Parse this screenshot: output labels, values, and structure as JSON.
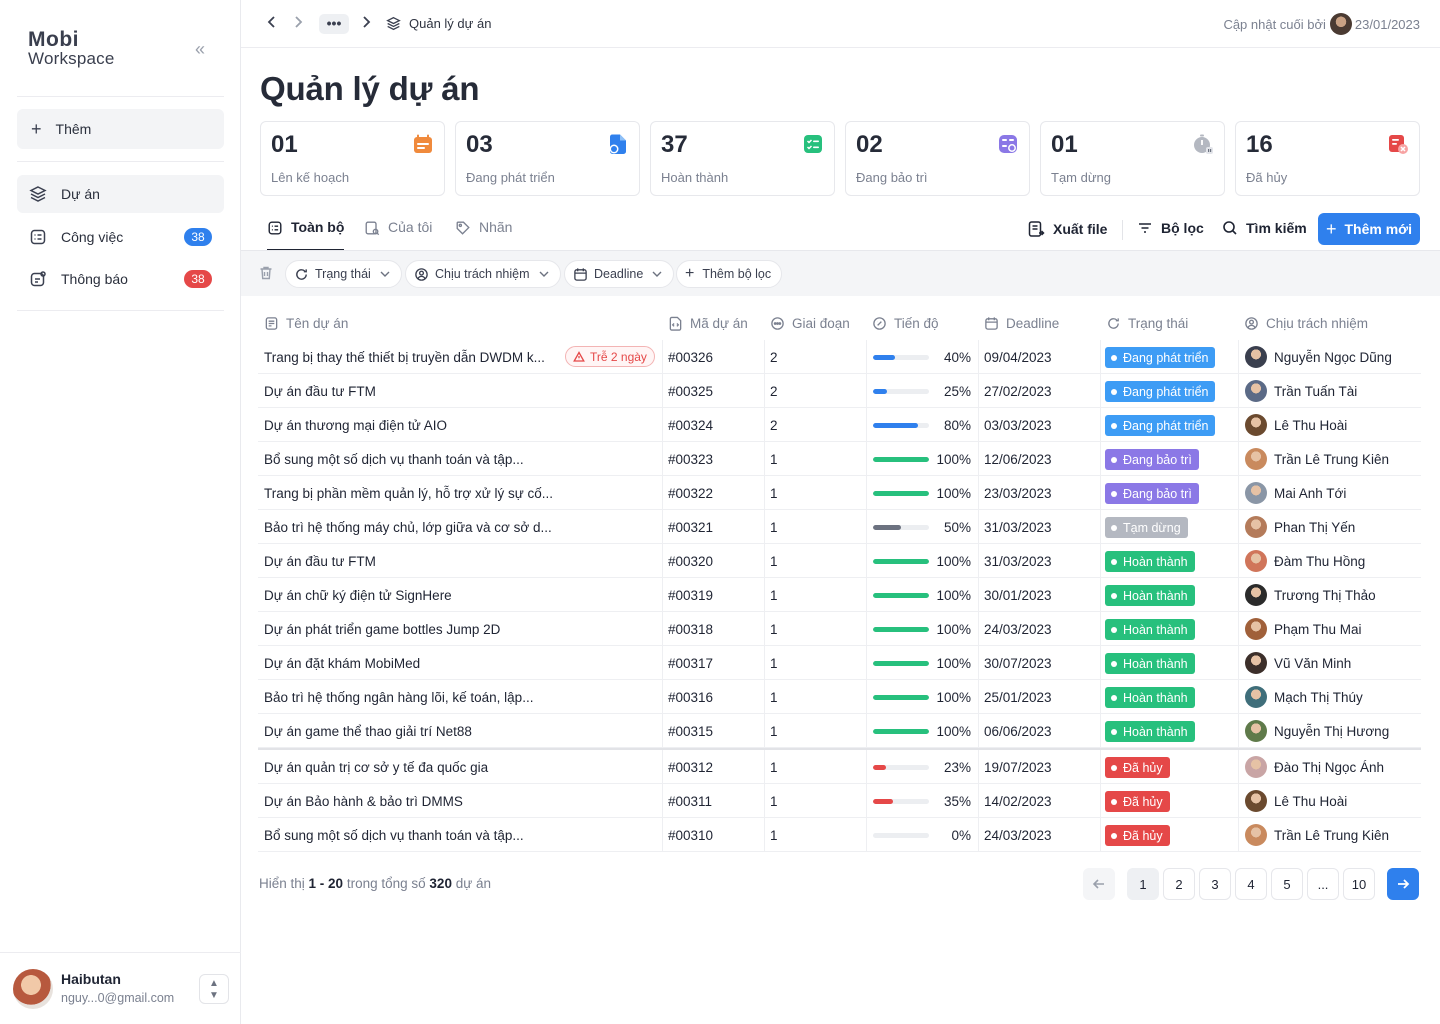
{
  "brand": {
    "logo_line1": "Mobi",
    "logo_line2": "Workspace"
  },
  "sidebar": {
    "add_label": "Thêm",
    "items": [
      {
        "label": "Dự án",
        "badge": ""
      },
      {
        "label": "Công việc",
        "badge": "38",
        "badge_color": "#2f80ed"
      },
      {
        "label": "Thông báo",
        "badge": "38",
        "badge_color": "#e54848"
      }
    ],
    "user": {
      "name": "Haibutan",
      "email": "nguy...0@gmail.com"
    }
  },
  "topbar": {
    "more_label": "•••",
    "breadcrumb": "Quản lý dự án",
    "updated_label": "Cập nhật cuối bởi",
    "updated_date": "23/01/2023"
  },
  "page": {
    "title": "Quản lý dự án"
  },
  "stats": [
    {
      "num": "01",
      "label": "Lên kế hoạch",
      "icon": "calendar-icon",
      "color": "#f08a3c"
    },
    {
      "num": "03",
      "label": "Đang phát triển",
      "icon": "file-code-icon",
      "color": "#2f80ed"
    },
    {
      "num": "37",
      "label": "Hoàn thành",
      "icon": "checklist-icon",
      "color": "#27c07d"
    },
    {
      "num": "02",
      "label": "Đang bảo trì",
      "icon": "maintenance-icon",
      "color": "#8b78e6"
    },
    {
      "num": "01",
      "label": "Tạm dừng",
      "icon": "pause-timer-icon",
      "color": "#9aa0ac"
    },
    {
      "num": "16",
      "label": "Đã hủy",
      "icon": "cancel-icon",
      "color": "#e54848"
    }
  ],
  "tabs": [
    {
      "label": "Toàn bộ",
      "active": true
    },
    {
      "label": "Của tôi",
      "active": false
    },
    {
      "label": "Nhãn",
      "active": false
    }
  ],
  "actions": {
    "export": "Xuất file",
    "filter": "Bộ lọc",
    "search": "Tìm kiếm",
    "add_new": "Thêm mới"
  },
  "filters": {
    "status": "Trạng thái",
    "owner": "Chịu trách nhiệm",
    "deadline": "Deadline",
    "add": "Thêm bộ lọc"
  },
  "table": {
    "headers": {
      "name": "Tên dự án",
      "code": "Mã dự án",
      "phase": "Giai đoạn",
      "progress": "Tiến độ",
      "deadline": "Deadline",
      "status": "Trạng thái",
      "owner": "Chịu trách nhiệm"
    },
    "late_label": "Trễ 2 ngày",
    "rows": [
      {
        "name": "Trang bị thay thế thiết bị truyền dẫn DWDM k...",
        "late": true,
        "code": "#00326",
        "phase": "2",
        "progress": 40,
        "progress_label": "40%",
        "deadline": "09/04/2023",
        "status": "Đang phát triển",
        "status_color": "#3d9cf5",
        "bar_color": "#2f80ed",
        "owner": "Nguyễn Ngọc Dũng",
        "avatar_color": "#3a3f4e"
      },
      {
        "name": "Dự án đầu tư FTM",
        "late": false,
        "code": "#00325",
        "phase": "2",
        "progress": 25,
        "progress_label": "25%",
        "deadline": "27/02/2023",
        "status": "Đang phát triển",
        "status_color": "#3d9cf5",
        "bar_color": "#2f80ed",
        "owner": "Trần Tuấn Tài",
        "avatar_color": "#5b6a86"
      },
      {
        "name": "Dự án thương mại điện tử AIO",
        "late": false,
        "code": "#00324",
        "phase": "2",
        "progress": 80,
        "progress_label": "80%",
        "deadline": "03/03/2023",
        "status": "Đang phát triển",
        "status_color": "#3d9cf5",
        "bar_color": "#2f80ed",
        "owner": "Lê Thu Hoài",
        "avatar_color": "#6b4a2f"
      },
      {
        "name": "Bổ sung một số dịch vụ thanh toán và tập...",
        "late": false,
        "code": "#00323",
        "phase": "1",
        "progress": 100,
        "progress_label": "100%",
        "deadline": "12/06/2023",
        "status": "Đang bảo trì",
        "status_color": "#8b78e6",
        "bar_color": "#27c07d",
        "owner": "Trần Lê Trung Kiên",
        "avatar_color": "#c98a5e"
      },
      {
        "name": "Trang bị phần mềm quản lý, hỗ trợ xử lý sự cố...",
        "late": false,
        "code": "#00322",
        "phase": "1",
        "progress": 100,
        "progress_label": "100%",
        "deadline": "23/03/2023",
        "status": "Đang bảo trì",
        "status_color": "#8b78e6",
        "bar_color": "#27c07d",
        "owner": "Mai Anh Tới",
        "avatar_color": "#8a96a6"
      },
      {
        "name": "Bảo trì hệ thống máy chủ, lớp giữa và cơ sở d...",
        "late": false,
        "code": "#00321",
        "phase": "1",
        "progress": 50,
        "progress_label": "50%",
        "deadline": "31/03/2023",
        "status": "Tạm dừng",
        "status_color": "#b4b8c1",
        "bar_color": "#6c7280",
        "owner": "Phan Thị Yến",
        "avatar_color": "#b47b5a"
      },
      {
        "name": "Dự án đầu tư FTM",
        "late": false,
        "code": "#00320",
        "phase": "1",
        "progress": 100,
        "progress_label": "100%",
        "deadline": "31/03/2023",
        "status": "Hoàn thành",
        "status_color": "#27c07d",
        "bar_color": "#27c07d",
        "owner": "Đàm Thu Hồng",
        "avatar_color": "#d0755a"
      },
      {
        "name": "Dự án chữ ký điện tử SignHere",
        "late": false,
        "code": "#00319",
        "phase": "1",
        "progress": 100,
        "progress_label": "100%",
        "deadline": "30/01/2023",
        "status": "Hoàn thành",
        "status_color": "#27c07d",
        "bar_color": "#27c07d",
        "owner": "Trương Thị Thảo",
        "avatar_color": "#2b2b2b"
      },
      {
        "name": "Dự án phát triển game bottles Jump 2D",
        "late": false,
        "code": "#00318",
        "phase": "1",
        "progress": 100,
        "progress_label": "100%",
        "deadline": "24/03/2023",
        "status": "Hoàn thành",
        "status_color": "#27c07d",
        "bar_color": "#27c07d",
        "owner": "Phạm Thu Mai",
        "avatar_color": "#a0603a"
      },
      {
        "name": "Dự án đặt khám MobiMed",
        "late": false,
        "code": "#00317",
        "phase": "1",
        "progress": 100,
        "progress_label": "100%",
        "deadline": "30/07/2023",
        "status": "Hoàn thành",
        "status_color": "#27c07d",
        "bar_color": "#27c07d",
        "owner": "Vũ Văn Minh",
        "avatar_color": "#3c2f2a"
      },
      {
        "name": "Bảo trì hệ thống ngân hàng lõi, kế toán, lập...",
        "late": false,
        "code": "#00316",
        "phase": "1",
        "progress": 100,
        "progress_label": "100%",
        "deadline": "25/01/2023",
        "status": "Hoàn thành",
        "status_color": "#27c07d",
        "bar_color": "#27c07d",
        "owner": "Mạch Thị Thúy",
        "avatar_color": "#3f6e7a"
      },
      {
        "name": "Dự án game thể thao giải trí Net88",
        "late": false,
        "code": "#00315",
        "phase": "1",
        "progress": 100,
        "progress_label": "100%",
        "deadline": "06/06/2023",
        "status": "Hoàn thành",
        "status_color": "#27c07d",
        "bar_color": "#27c07d",
        "owner": "Nguyễn Thị Hương",
        "avatar_color": "#5f7a4a"
      },
      {
        "name": "Dự án quản trị cơ sở y tế đa quốc gia",
        "late": false,
        "code": "#00312",
        "phase": "1",
        "progress": 23,
        "progress_label": "23%",
        "deadline": "19/07/2023",
        "status": "Đã hủy",
        "status_color": "#e54848",
        "bar_color": "#e54848",
        "owner": "Đào Thị Ngọc Ánh",
        "avatar_color": "#c9a5a5"
      },
      {
        "name": "Dự án Bảo hành & bảo trì DMMS",
        "late": false,
        "code": "#00311",
        "phase": "1",
        "progress": 35,
        "progress_label": "35%",
        "deadline": "14/02/2023",
        "status": "Đã hủy",
        "status_color": "#e54848",
        "bar_color": "#e54848",
        "owner": "Lê Thu Hoài",
        "avatar_color": "#6b4a2f"
      },
      {
        "name": "Bổ sung một số dịch vụ thanh toán và tập...",
        "late": false,
        "code": "#00310",
        "phase": "1",
        "progress": 0,
        "progress_label": "0%",
        "deadline": "24/03/2023",
        "status": "Đã hủy",
        "status_color": "#e54848",
        "bar_color": "#e54848",
        "owner": "Trần Lê Trung Kiên",
        "avatar_color": "#c98a5e"
      }
    ]
  },
  "footer": {
    "showing_prefix": "Hiển thị",
    "range": "1 - 20",
    "total_prefix": "trong tổng số",
    "total": "320",
    "total_suffix": "dự án",
    "pages": [
      "1",
      "2",
      "3",
      "4",
      "5",
      "...",
      "10"
    ],
    "current_page": "1"
  }
}
